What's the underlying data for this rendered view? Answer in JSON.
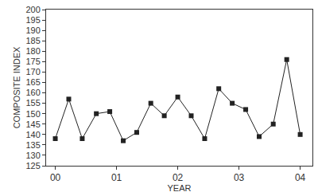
{
  "chart_data": {
    "type": "line",
    "x_label": "YEAR",
    "y_label": "COMPOSITE INDEX",
    "x": [
      0,
      0.22,
      0.44,
      0.67,
      0.89,
      1.11,
      1.33,
      1.56,
      1.78,
      2,
      2.22,
      2.44,
      2.67,
      2.89,
      3.11,
      3.33,
      3.56,
      3.78,
      4
    ],
    "values": [
      138,
      157,
      138,
      150,
      151,
      137,
      141,
      155,
      149,
      158,
      149,
      138,
      162,
      155,
      152,
      139,
      145,
      176,
      140
    ],
    "color": "#222222",
    "marker": "square",
    "line_style": "solid",
    "xlim": [
      -0.15,
      4.2
    ],
    "xticks": [
      {
        "value": 0,
        "label": "00"
      },
      {
        "value": 1,
        "label": "01"
      },
      {
        "value": 2,
        "label": "02"
      },
      {
        "value": 3,
        "label": "03"
      },
      {
        "value": 4,
        "label": "04"
      }
    ],
    "ylim": [
      125,
      200
    ],
    "yticks": [
      125,
      130,
      135,
      140,
      145,
      150,
      155,
      160,
      165,
      170,
      175,
      180,
      185,
      190,
      195,
      200
    ],
    "grid": false
  }
}
